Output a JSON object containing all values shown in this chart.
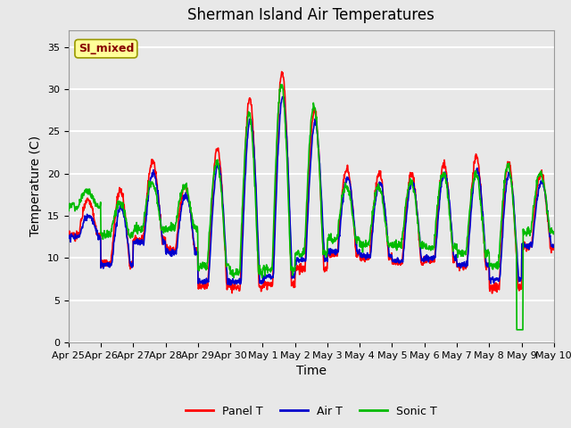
{
  "title": "Sherman Island Air Temperatures",
  "xlabel": "Time",
  "ylabel": "Temperature (C)",
  "ylim": [
    0,
    37
  ],
  "yticks": [
    0,
    5,
    10,
    15,
    20,
    25,
    30,
    35
  ],
  "xlim": [
    0,
    15
  ],
  "xtick_labels": [
    "Apr 25",
    "Apr 26",
    "Apr 27",
    "Apr 28",
    "Apr 29",
    "Apr 30",
    "May 1",
    "May 2",
    "May 3",
    "May 4",
    "May 5",
    "May 6",
    "May 7",
    "May 8",
    "May 9",
    "May 10"
  ],
  "xtick_positions": [
    0,
    1,
    2,
    3,
    4,
    5,
    6,
    7,
    8,
    9,
    10,
    11,
    12,
    13,
    14,
    15
  ],
  "panel_color": "#ff0000",
  "air_color": "#0000cd",
  "sonic_color": "#00bb00",
  "line_width": 1.2,
  "bg_color": "#e8e8e8",
  "grid_color": "#ffffff",
  "fig_bg_color": "#e8e8e8",
  "annotation_text": "SI_mixed",
  "annotation_color": "#880000",
  "annotation_bg": "#ffff99",
  "legend_labels": [
    "Panel T",
    "Air T",
    "Sonic T"
  ],
  "title_fontsize": 12,
  "tick_fontsize": 8,
  "axis_label_fontsize": 10
}
